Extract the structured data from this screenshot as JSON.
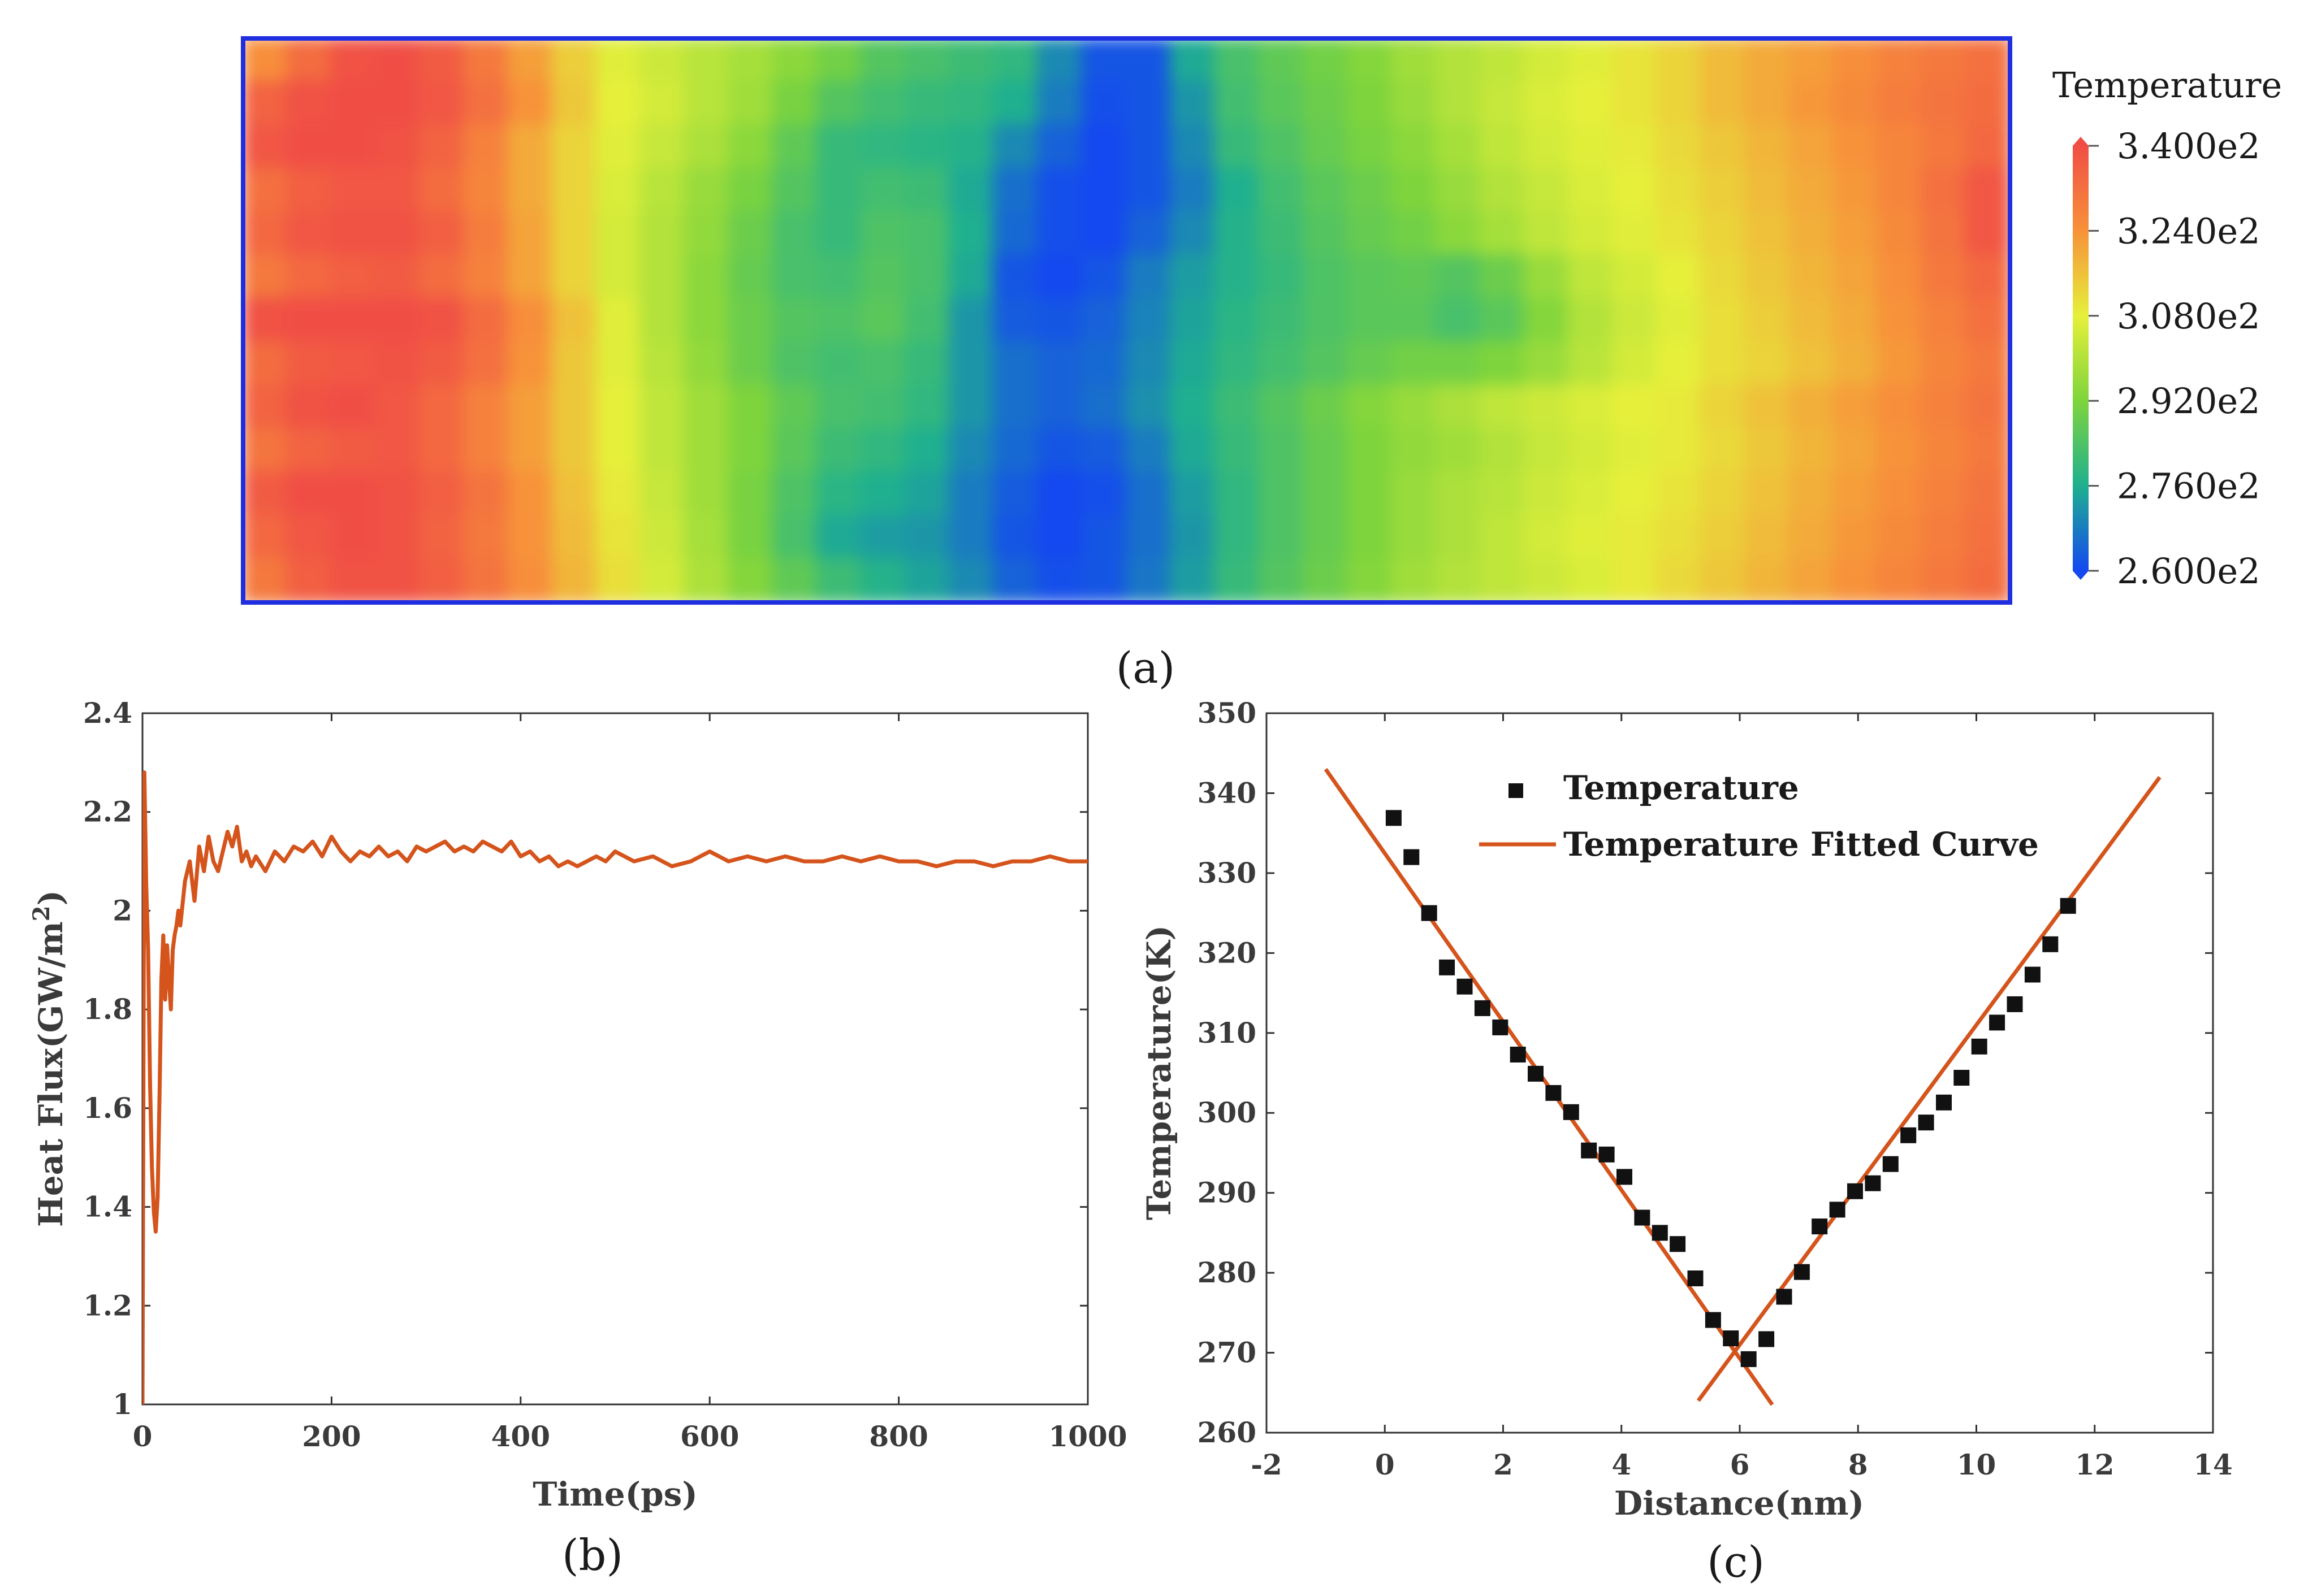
{
  "panel_labels": {
    "a": "(a)",
    "b": "(b)",
    "c": "(c)"
  },
  "colors": {
    "heat_max": "#f04e45",
    "heat_mid": "#e6f03a",
    "heat_min": "#1448f0",
    "frame_blue": "#1f2fe0",
    "series": "#d4541c",
    "marker": "#111111"
  },
  "chart_data": [
    {
      "type": "heatmap",
      "title": "",
      "colorbar": {
        "title": "Temperature",
        "ticks": [
          "3.400e2",
          "3.240e2",
          "3.080e2",
          "2.920e2",
          "2.760e2",
          "2.600e2"
        ],
        "range": [
          260,
          340
        ]
      },
      "x": [
        0,
        1,
        2,
        3,
        4,
        5,
        6,
        7,
        8,
        9,
        10,
        11,
        12,
        13,
        14,
        15,
        16,
        17,
        18,
        19,
        20,
        21,
        22,
        23,
        24,
        25,
        26,
        27,
        28,
        29,
        30,
        31,
        32,
        33,
        34,
        35,
        36,
        37,
        38,
        39
      ],
      "y": [
        0,
        1,
        2,
        3,
        4,
        5,
        6,
        7,
        8,
        9,
        10,
        11,
        12
      ],
      "z": [
        [
          325,
          333,
          339,
          340,
          337,
          330,
          322,
          314,
          307,
          304,
          301,
          298,
          294,
          290,
          285,
          283,
          281,
          279,
          270,
          262,
          262,
          275,
          283,
          287,
          290,
          293,
          297,
          300,
          302,
          305,
          307,
          310,
          313,
          317,
          320,
          322,
          325,
          328,
          330,
          332
        ],
        [
          335,
          339,
          340,
          340,
          338,
          332,
          324,
          315,
          308,
          305,
          301,
          297,
          291,
          285,
          282,
          280,
          279,
          276,
          268,
          261,
          262,
          272,
          282,
          286,
          289,
          292,
          296,
          300,
          303,
          306,
          308,
          310,
          313,
          317,
          320,
          323,
          326,
          329,
          331,
          333
        ],
        [
          338,
          340,
          340,
          339,
          335,
          328,
          320,
          313,
          307,
          303,
          299,
          294,
          287,
          280,
          279,
          278,
          277,
          270,
          264,
          260,
          262,
          270,
          280,
          284,
          288,
          291,
          294,
          298,
          302,
          305,
          307,
          309,
          312,
          315,
          318,
          321,
          324,
          327,
          330,
          334
        ],
        [
          332,
          336,
          338,
          338,
          333,
          327,
          320,
          313,
          306,
          301,
          296,
          291,
          285,
          280,
          282,
          281,
          275,
          266,
          261,
          260,
          262,
          268,
          276,
          282,
          286,
          289,
          292,
          296,
          300,
          303,
          306,
          308,
          311,
          314,
          317,
          320,
          323,
          327,
          332,
          338
        ],
        [
          334,
          338,
          339,
          339,
          336,
          329,
          321,
          313,
          305,
          300,
          295,
          289,
          283,
          280,
          284,
          283,
          276,
          265,
          261,
          260,
          264,
          270,
          277,
          281,
          285,
          288,
          290,
          294,
          298,
          302,
          305,
          307,
          310,
          313,
          316,
          319,
          322,
          326,
          331,
          338
        ],
        [
          330,
          334,
          336,
          337,
          333,
          328,
          321,
          313,
          305,
          300,
          294,
          288,
          283,
          282,
          285,
          283,
          275,
          262,
          260,
          262,
          268,
          273,
          277,
          280,
          284,
          286,
          287,
          285,
          289,
          296,
          302,
          305,
          308,
          312,
          315,
          318,
          321,
          325,
          330,
          334
        ],
        [
          339,
          340,
          340,
          340,
          339,
          333,
          325,
          316,
          307,
          300,
          294,
          289,
          285,
          284,
          286,
          282,
          272,
          263,
          262,
          264,
          269,
          274,
          278,
          281,
          284,
          286,
          286,
          283,
          286,
          293,
          300,
          304,
          307,
          311,
          314,
          317,
          320,
          324,
          328,
          332
        ],
        [
          333,
          337,
          338,
          339,
          337,
          332,
          324,
          315,
          307,
          301,
          295,
          289,
          284,
          282,
          283,
          280,
          272,
          266,
          264,
          265,
          270,
          275,
          279,
          282,
          285,
          288,
          290,
          290,
          292,
          296,
          301,
          305,
          308,
          311,
          313,
          316,
          319,
          323,
          327,
          330
        ],
        [
          335,
          339,
          340,
          338,
          334,
          328,
          322,
          315,
          308,
          302,
          297,
          292,
          287,
          283,
          282,
          279,
          272,
          266,
          264,
          266,
          271,
          276,
          281,
          285,
          289,
          293,
          296,
          299,
          302,
          304,
          306,
          308,
          309,
          313,
          316,
          319,
          322,
          325,
          328,
          331
        ],
        [
          331,
          335,
          337,
          338,
          334,
          328,
          322,
          315,
          308,
          302,
          297,
          292,
          286,
          281,
          279,
          276,
          270,
          265,
          262,
          263,
          268,
          275,
          280,
          284,
          288,
          292,
          295,
          297,
          300,
          303,
          305,
          307,
          309,
          312,
          315,
          318,
          321,
          324,
          327,
          330
        ],
        [
          337,
          340,
          340,
          339,
          336,
          331,
          324,
          316,
          309,
          303,
          297,
          291,
          284,
          278,
          276,
          274,
          268,
          263,
          260,
          261,
          266,
          273,
          279,
          284,
          288,
          292,
          296,
          299,
          301,
          304,
          306,
          308,
          310,
          313,
          316,
          319,
          322,
          325,
          328,
          331
        ],
        [
          334,
          338,
          340,
          339,
          335,
          330,
          324,
          317,
          310,
          304,
          298,
          291,
          283,
          275,
          273,
          272,
          268,
          262,
          260,
          262,
          266,
          272,
          279,
          284,
          288,
          292,
          296,
          299,
          302,
          305,
          307,
          309,
          311,
          314,
          317,
          320,
          323,
          326,
          329,
          332
        ],
        [
          330,
          336,
          339,
          339,
          336,
          331,
          325,
          318,
          311,
          305,
          299,
          293,
          287,
          281,
          277,
          274,
          270,
          264,
          261,
          262,
          267,
          273,
          280,
          285,
          289,
          293,
          297,
          300,
          302,
          304,
          306,
          309,
          312,
          315,
          318,
          321,
          324,
          327,
          330,
          333
        ]
      ]
    },
    {
      "type": "line",
      "xlabel": "Time(ps)",
      "ylabel": "Heat Flux(GW/m²)",
      "xlim": [
        0,
        1000
      ],
      "ylim": [
        1,
        2.4
      ],
      "xticks": [
        0,
        200,
        400,
        600,
        800,
        1000
      ],
      "yticks": [
        1,
        1.2,
        1.4,
        1.6,
        1.8,
        2,
        2.2,
        2.4
      ],
      "series": [
        {
          "x": [
            0,
            2,
            4,
            6,
            8,
            10,
            12,
            14,
            16,
            18,
            20,
            22,
            24,
            26,
            28,
            30,
            32,
            34,
            36,
            38,
            40,
            45,
            50,
            55,
            60,
            65,
            70,
            75,
            80,
            85,
            90,
            95,
            100,
            105,
            110,
            115,
            120,
            130,
            140,
            150,
            160,
            170,
            180,
            190,
            200,
            210,
            220,
            230,
            240,
            250,
            260,
            270,
            280,
            290,
            300,
            310,
            320,
            330,
            340,
            350,
            360,
            370,
            380,
            390,
            400,
            410,
            420,
            430,
            440,
            450,
            460,
            470,
            480,
            490,
            500,
            520,
            540,
            560,
            580,
            600,
            620,
            640,
            660,
            680,
            700,
            720,
            740,
            760,
            780,
            800,
            820,
            840,
            860,
            880,
            900,
            920,
            940,
            960,
            980,
            1000
          ],
          "y": [
            1.0,
            2.28,
            2.05,
            1.92,
            1.65,
            1.48,
            1.39,
            1.35,
            1.42,
            1.62,
            1.86,
            1.95,
            1.82,
            1.93,
            1.86,
            1.8,
            1.92,
            1.95,
            1.97,
            2.0,
            1.97,
            2.06,
            2.1,
            2.02,
            2.13,
            2.08,
            2.15,
            2.1,
            2.08,
            2.12,
            2.16,
            2.13,
            2.17,
            2.1,
            2.12,
            2.09,
            2.11,
            2.08,
            2.12,
            2.1,
            2.13,
            2.12,
            2.14,
            2.11,
            2.15,
            2.12,
            2.1,
            2.12,
            2.11,
            2.13,
            2.11,
            2.12,
            2.1,
            2.13,
            2.12,
            2.13,
            2.14,
            2.12,
            2.13,
            2.12,
            2.14,
            2.13,
            2.12,
            2.14,
            2.11,
            2.12,
            2.1,
            2.11,
            2.09,
            2.1,
            2.09,
            2.1,
            2.11,
            2.1,
            2.12,
            2.1,
            2.11,
            2.09,
            2.1,
            2.12,
            2.1,
            2.11,
            2.1,
            2.11,
            2.1,
            2.1,
            2.11,
            2.1,
            2.11,
            2.1,
            2.1,
            2.09,
            2.1,
            2.1,
            2.09,
            2.1,
            2.1,
            2.11,
            2.1,
            2.1
          ]
        }
      ]
    },
    {
      "type": "scatter",
      "xlabel": "Distance(nm)",
      "ylabel": "Temperature(K)",
      "xlim": [
        -2,
        14
      ],
      "ylim": [
        260,
        350
      ],
      "xticks": [
        -2,
        0,
        2,
        4,
        6,
        8,
        10,
        12,
        14
      ],
      "yticks": [
        260,
        270,
        280,
        290,
        300,
        310,
        320,
        330,
        340,
        350
      ],
      "legend": {
        "position": "top-left"
      },
      "series": [
        {
          "name": "Temperature",
          "x": [
            0.15,
            0.45,
            0.75,
            1.05,
            1.35,
            1.65,
            1.95,
            2.25,
            2.55,
            2.85,
            3.15,
            3.45,
            3.75,
            4.05,
            4.35,
            4.65,
            4.95,
            5.25,
            5.55,
            5.85,
            6.15,
            6.45,
            6.75,
            7.05,
            7.35,
            7.65,
            7.95,
            8.25,
            8.55,
            8.85,
            9.15,
            9.45,
            9.75,
            10.05,
            10.35,
            10.65,
            10.95,
            11.25,
            11.55
          ],
          "y": [
            336.9,
            332.0,
            325.0,
            318.2,
            315.8,
            313.1,
            310.7,
            307.3,
            304.9,
            302.5,
            300.1,
            295.3,
            294.8,
            292.0,
            286.9,
            285.0,
            283.6,
            279.3,
            274.1,
            271.8,
            269.2,
            271.7,
            277.0,
            280.1,
            285.8,
            287.9,
            290.2,
            291.2,
            293.6,
            297.2,
            298.8,
            301.3,
            304.4,
            308.3,
            311.3,
            313.6,
            317.3,
            321.1,
            325.9
          ]
        },
        {
          "name": "Temperature Fitted Curve",
          "segments": [
            {
              "x": [
                -1.0,
                6.55
              ],
              "y": [
                343.0,
                263.5
              ]
            },
            {
              "x": [
                5.3,
                13.1
              ],
              "y": [
                264.0,
                342.0
              ]
            }
          ]
        }
      ]
    }
  ]
}
